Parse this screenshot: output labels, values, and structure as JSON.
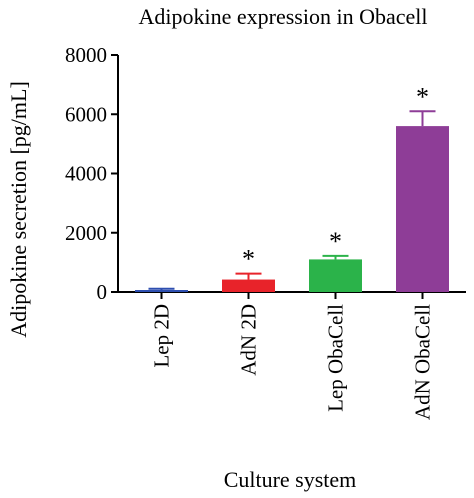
{
  "chart_data": {
    "type": "bar",
    "title": "Adipokine expression in Obacell",
    "xlabel": "Culture system",
    "ylabel": "Adipokine secretion [pg/mL]",
    "ylim": [
      0,
      8000
    ],
    "yticks": [
      0,
      2000,
      4000,
      6000,
      8000
    ],
    "categories": [
      "Lep 2D",
      "AdN 2D",
      "Lep ObaCell",
      "AdN ObaCell"
    ],
    "values": [
      60,
      420,
      1100,
      5600
    ],
    "errors": [
      50,
      200,
      120,
      500
    ],
    "significance": [
      "",
      "*",
      "*",
      "*"
    ],
    "colors": [
      "#2e4fb0",
      "#e8232a",
      "#2bb34a",
      "#8e3d97"
    ],
    "grid": false,
    "legend": "none"
  }
}
